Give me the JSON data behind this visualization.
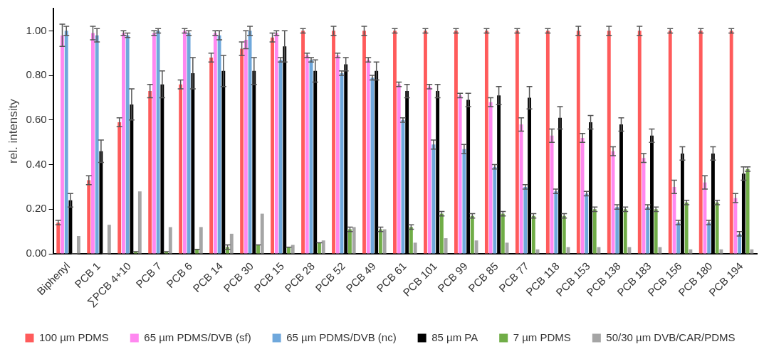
{
  "chart_data": {
    "type": "bar",
    "ylabel": "rel. intensity",
    "categories": [
      "Biphenyl",
      "PCB 1",
      "∑PCB 4+10",
      "PCB 7",
      "PCB 6",
      "PCB 14",
      "PCB 30",
      "PCB 15",
      "PCB 28",
      "PCB 52",
      "PCB 49",
      "PCB 61",
      "PCB 101",
      "PCB 99",
      "PCB 85",
      "PCB 77",
      "PCB 118",
      "PCB 153",
      "PCB 138",
      "PCB 183",
      "PCB 156",
      "PCB 180",
      "PCB 194"
    ],
    "series": [
      {
        "name": "100 µm PDMS",
        "color": "#ff5b5b",
        "values": [
          0.14,
          0.33,
          0.59,
          0.73,
          0.76,
          0.88,
          0.92,
          0.97,
          1.0,
          1.0,
          1.0,
          1.0,
          1.0,
          1.0,
          1.0,
          1.0,
          1.0,
          1.0,
          1.0,
          1.0,
          1.0,
          1.0,
          1.0
        ],
        "errors": [
          0.01,
          0.02,
          0.02,
          0.03,
          0.02,
          0.02,
          0.03,
          0.02,
          0.01,
          0.02,
          0.02,
          0.01,
          0.01,
          0.01,
          0.01,
          0.01,
          0.01,
          0.02,
          0.02,
          0.02,
          0.01,
          0.01,
          0.01
        ]
      },
      {
        "name": "65 µm PDMS/DVB (sf)",
        "color": "#ff88f0",
        "values": [
          0.98,
          0.99,
          0.99,
          0.99,
          1.0,
          0.99,
          0.96,
          0.99,
          0.89,
          0.89,
          0.87,
          0.76,
          0.75,
          0.71,
          0.68,
          0.58,
          0.53,
          0.52,
          0.46,
          0.43,
          0.3,
          0.32,
          0.25
        ],
        "errors": [
          0.05,
          0.03,
          0.01,
          0.01,
          0.01,
          0.01,
          0.04,
          0.01,
          0.01,
          0.01,
          0.01,
          0.01,
          0.01,
          0.01,
          0.02,
          0.03,
          0.03,
          0.02,
          0.02,
          0.02,
          0.03,
          0.03,
          0.02
        ]
      },
      {
        "name": "65 µm PDMS/DVB (nc)",
        "color": "#6fa8dc",
        "values": [
          1.0,
          0.98,
          0.98,
          1.0,
          0.99,
          0.98,
          1.0,
          0.87,
          0.87,
          0.81,
          0.79,
          0.6,
          0.49,
          0.47,
          0.39,
          0.3,
          0.28,
          0.27,
          0.21,
          0.21,
          0.14,
          0.14,
          0.09
        ],
        "errors": [
          0.02,
          0.03,
          0.01,
          0.01,
          0.01,
          0.02,
          0.02,
          0.01,
          0.01,
          0.01,
          0.01,
          0.01,
          0.02,
          0.02,
          0.01,
          0.01,
          0.01,
          0.01,
          0.01,
          0.01,
          0.01,
          0.01,
          0.01
        ]
      },
      {
        "name": "85 µm PA",
        "color": "#000000",
        "values": [
          0.24,
          0.46,
          0.67,
          0.76,
          0.81,
          0.82,
          0.82,
          0.93,
          0.82,
          0.85,
          0.82,
          0.73,
          0.73,
          0.69,
          0.71,
          0.7,
          0.61,
          0.59,
          0.58,
          0.53,
          0.45,
          0.45,
          0.36
        ],
        "errors": [
          0.03,
          0.05,
          0.07,
          0.06,
          0.07,
          0.07,
          0.06,
          0.07,
          0.05,
          0.03,
          0.04,
          0.03,
          0.03,
          0.03,
          0.04,
          0.05,
          0.05,
          0.03,
          0.03,
          0.03,
          0.03,
          0.03,
          0.03
        ]
      },
      {
        "name": "7 µm PDMS",
        "color": "#70ad47",
        "values": [
          0.0,
          0.0,
          0.01,
          0.01,
          0.02,
          0.03,
          0.04,
          0.03,
          0.05,
          0.11,
          0.11,
          0.12,
          0.18,
          0.17,
          0.18,
          0.17,
          0.17,
          0.2,
          0.2,
          0.2,
          0.23,
          0.23,
          0.38
        ],
        "errors": [
          0.0,
          0.0,
          0.0,
          0.0,
          0.0,
          0.01,
          0.0,
          0.0,
          0.0,
          0.01,
          0.01,
          0.01,
          0.01,
          0.01,
          0.01,
          0.01,
          0.01,
          0.01,
          0.01,
          0.01,
          0.01,
          0.01,
          0.01
        ]
      },
      {
        "name": "50/30 µm DVB/CAR/PDMS",
        "color": "#a5a5a5",
        "values": [
          0.08,
          0.13,
          0.28,
          0.12,
          0.12,
          0.09,
          0.18,
          0.04,
          0.06,
          0.12,
          0.11,
          0.05,
          0.07,
          0.06,
          0.05,
          0.02,
          0.03,
          0.03,
          0.03,
          0.03,
          0.02,
          0.02,
          0.02
        ]
      }
    ],
    "ylim": [
      0,
      1.1
    ],
    "yticks": [
      {
        "value": 0,
        "label": "0.00"
      },
      {
        "value": 0.2,
        "label": "0.20"
      },
      {
        "value": 0.4,
        "label": "0.40"
      },
      {
        "value": 0.6,
        "label": "0.60"
      },
      {
        "value": 0.8,
        "label": "0.80"
      },
      {
        "value": 1,
        "label": "1.00"
      }
    ],
    "grid": false,
    "legend": "bottom"
  }
}
